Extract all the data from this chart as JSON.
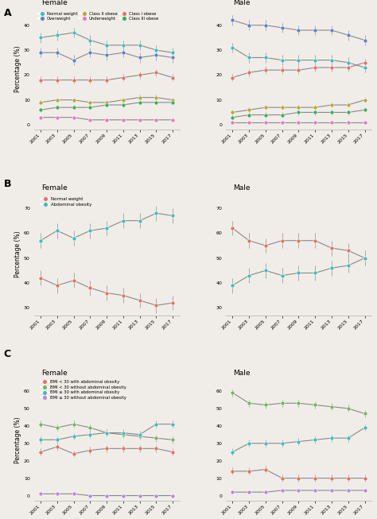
{
  "years": [
    2001,
    2003,
    2005,
    2007,
    2009,
    2011,
    2013,
    2015,
    2017
  ],
  "A": {
    "female": {
      "normal_weight": {
        "y": [
          35,
          36,
          37,
          34,
          32,
          32,
          32,
          30,
          29
        ],
        "yerr": [
          2,
          2,
          2,
          2,
          2,
          2,
          2,
          2,
          2
        ]
      },
      "overweight": {
        "y": [
          29,
          29,
          26,
          29,
          28,
          29,
          27,
          28,
          27
        ],
        "yerr": [
          2,
          2,
          2,
          2,
          2,
          2,
          2,
          2,
          2
        ]
      },
      "class1_obese": {
        "y": [
          18,
          18,
          18,
          18,
          18,
          19,
          20,
          21,
          19
        ],
        "yerr": [
          1.5,
          1.5,
          1.5,
          1.5,
          1.5,
          1.5,
          1.5,
          1.5,
          1.5
        ]
      },
      "class2_obese": {
        "y": [
          9,
          10,
          10,
          9,
          9,
          10,
          11,
          11,
          10
        ],
        "yerr": [
          1,
          1,
          1,
          1,
          1,
          1,
          1,
          1,
          1
        ]
      },
      "class3_obese": {
        "y": [
          6,
          7,
          7,
          7,
          8,
          8,
          9,
          9,
          9
        ],
        "yerr": [
          1,
          1,
          1,
          1,
          1,
          1,
          1,
          1,
          1
        ]
      },
      "underweight": {
        "y": [
          3,
          3,
          3,
          2,
          2,
          2,
          2,
          2,
          2
        ],
        "yerr": [
          0.5,
          0.5,
          0.5,
          0.5,
          0.5,
          0.5,
          0.5,
          0.5,
          0.5
        ]
      }
    },
    "male": {
      "normal_weight": {
        "y": [
          31,
          27,
          27,
          26,
          26,
          26,
          26,
          25,
          23
        ],
        "yerr": [
          2,
          2,
          2,
          2,
          2,
          2,
          2,
          2,
          2
        ]
      },
      "overweight": {
        "y": [
          42,
          40,
          40,
          39,
          38,
          38,
          38,
          36,
          34
        ],
        "yerr": [
          2,
          2,
          2,
          2,
          2,
          2,
          2,
          2,
          2
        ]
      },
      "class1_obese": {
        "y": [
          19,
          21,
          22,
          22,
          22,
          23,
          23,
          23,
          25
        ],
        "yerr": [
          1.5,
          1.5,
          1.5,
          1.5,
          1.5,
          1.5,
          1.5,
          1.5,
          1.5
        ]
      },
      "class2_obese": {
        "y": [
          5,
          6,
          7,
          7,
          7,
          7,
          8,
          8,
          10
        ],
        "yerr": [
          1,
          1,
          1,
          1,
          1,
          1,
          1,
          1,
          1
        ]
      },
      "class3_obese": {
        "y": [
          3,
          4,
          4,
          4,
          5,
          5,
          5,
          5,
          6
        ],
        "yerr": [
          1,
          1,
          1,
          1,
          1,
          1,
          1,
          1,
          1
        ]
      },
      "underweight": {
        "y": [
          1,
          1,
          1,
          1,
          1,
          1,
          1,
          1,
          1
        ],
        "yerr": [
          0.3,
          0.3,
          0.3,
          0.3,
          0.3,
          0.3,
          0.3,
          0.3,
          0.3
        ]
      }
    }
  },
  "B": {
    "female": {
      "normal_weight": {
        "y": [
          42,
          39,
          41,
          38,
          36,
          35,
          33,
          31,
          32
        ],
        "yerr": [
          3,
          3,
          3,
          3,
          3,
          3,
          3,
          3,
          3
        ]
      },
      "abdominal_obese": {
        "y": [
          57,
          61,
          58,
          61,
          62,
          65,
          65,
          68,
          67
        ],
        "yerr": [
          3,
          3,
          3,
          3,
          3,
          3,
          3,
          3,
          3
        ]
      }
    },
    "male": {
      "normal_weight": {
        "y": [
          62,
          57,
          55,
          57,
          57,
          57,
          54,
          53,
          50
        ],
        "yerr": [
          3,
          3,
          3,
          3,
          3,
          3,
          3,
          3,
          3
        ]
      },
      "abdominal_obese": {
        "y": [
          39,
          43,
          45,
          43,
          44,
          44,
          46,
          47,
          50
        ],
        "yerr": [
          3,
          3,
          3,
          3,
          3,
          3,
          3,
          3,
          3
        ]
      }
    }
  },
  "C": {
    "female": {
      "bmi_lt30_with_abd": {
        "y": [
          25,
          28,
          24,
          26,
          27,
          27,
          27,
          27,
          25
        ],
        "yerr": [
          2,
          2,
          2,
          2,
          2,
          2,
          2,
          2,
          2
        ]
      },
      "bmi_lt30_without_abd": {
        "y": [
          41,
          39,
          41,
          39,
          36,
          35,
          34,
          33,
          32
        ],
        "yerr": [
          2,
          2,
          2,
          2,
          2,
          2,
          2,
          2,
          2
        ]
      },
      "bmi_ge30_with_abd": {
        "y": [
          32,
          32,
          34,
          35,
          36,
          36,
          35,
          41,
          41
        ],
        "yerr": [
          2,
          2,
          2,
          2,
          2,
          2,
          2,
          2,
          2
        ]
      },
      "bmi_ge30_without_abd": {
        "y": [
          1,
          1,
          1,
          0,
          0,
          0,
          0,
          0,
          0
        ],
        "yerr": [
          0.3,
          0.3,
          0.3,
          0.3,
          0.3,
          0.3,
          0.3,
          0.3,
          0.3
        ]
      }
    },
    "male": {
      "bmi_lt30_with_abd": {
        "y": [
          14,
          14,
          15,
          10,
          10,
          10,
          10,
          10,
          10
        ],
        "yerr": [
          2,
          2,
          2,
          2,
          2,
          2,
          2,
          2,
          2
        ]
      },
      "bmi_lt30_without_abd": {
        "y": [
          59,
          53,
          52,
          53,
          53,
          52,
          51,
          50,
          47
        ],
        "yerr": [
          2,
          2,
          2,
          2,
          2,
          2,
          2,
          2,
          2
        ]
      },
      "bmi_ge30_with_abd": {
        "y": [
          25,
          30,
          30,
          30,
          31,
          32,
          33,
          33,
          39
        ],
        "yerr": [
          2,
          2,
          2,
          2,
          2,
          2,
          2,
          2,
          2
        ]
      },
      "bmi_ge30_without_abd": {
        "y": [
          2,
          2,
          2,
          3,
          3,
          3,
          3,
          3,
          3
        ],
        "yerr": [
          0.5,
          0.5,
          0.5,
          0.5,
          0.5,
          0.5,
          0.5,
          0.5,
          0.5
        ]
      }
    }
  },
  "colors": {
    "normal_weight": "#3dbdbd",
    "overweight": "#6080c8",
    "class1_obese": "#e87060",
    "class2_obese": "#b8a832",
    "class3_obese": "#38b058",
    "underweight": "#e878c0",
    "abdominal_obese": "#3dbdbd",
    "bmi_lt30_with_abd": "#e87060",
    "bmi_lt30_without_abd": "#70b858",
    "bmi_ge30_with_abd": "#3dbdbd",
    "bmi_ge30_without_abd": "#b888d8"
  },
  "bg_color": "#f0ede8",
  "line_color": "#888888",
  "error_color": "#aaaaaa"
}
